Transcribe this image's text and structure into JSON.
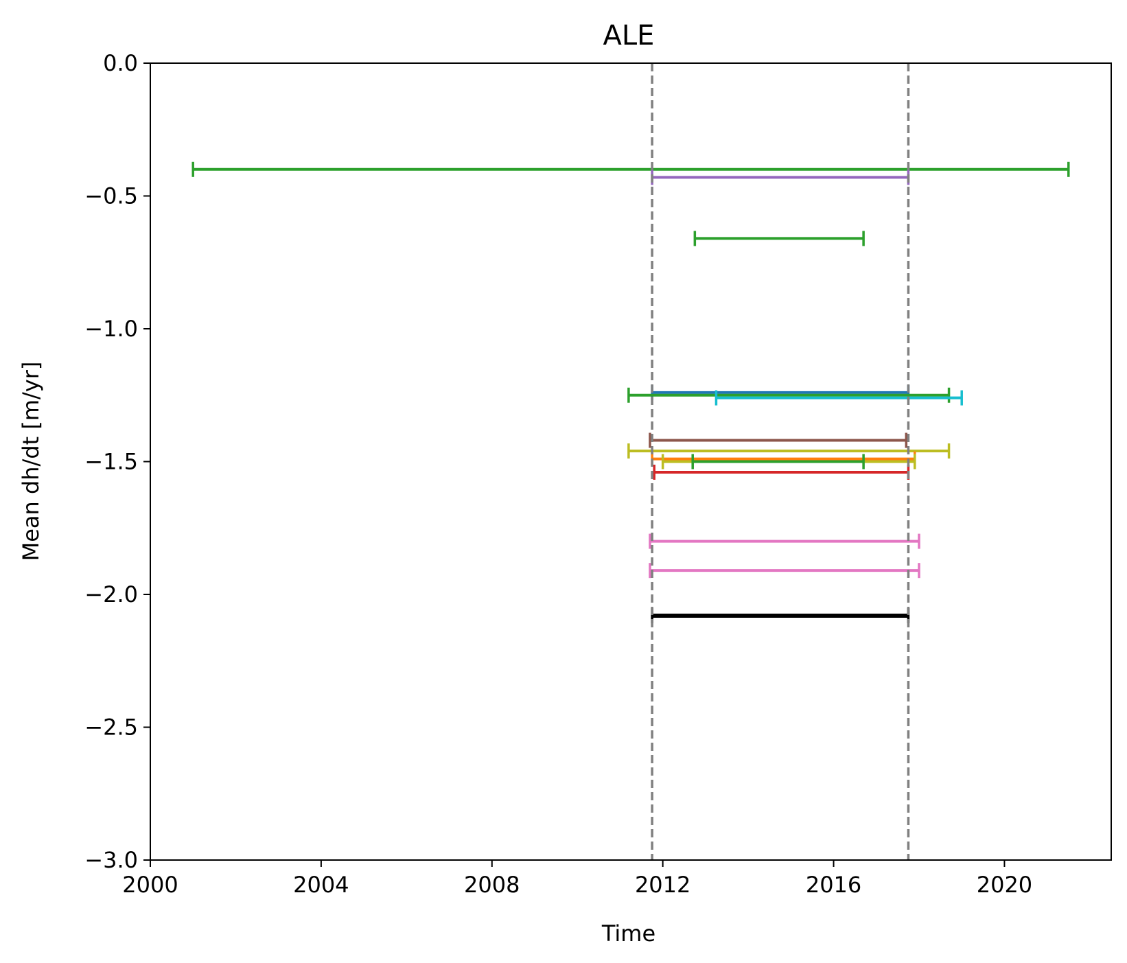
{
  "chart_data": {
    "type": "errorbar",
    "title": "ALE",
    "xlabel": "Time",
    "ylabel": "Mean dh/dt [m/yr]",
    "xlim": [
      2000,
      2022.5
    ],
    "ylim": [
      -3.0,
      0.0
    ],
    "x_ticks": [
      {
        "value": 2000,
        "label": "2000"
      },
      {
        "value": 2004,
        "label": "2004"
      },
      {
        "value": 2008,
        "label": "2008"
      },
      {
        "value": 2012,
        "label": "2012"
      },
      {
        "value": 2016,
        "label": "2016"
      },
      {
        "value": 2020,
        "label": "2020"
      }
    ],
    "y_ticks": [
      {
        "value": 0.0,
        "label": "0.0"
      },
      {
        "value": -0.5,
        "label": "−0.5"
      },
      {
        "value": -1.0,
        "label": "−1.0"
      },
      {
        "value": -1.5,
        "label": "−1.5"
      },
      {
        "value": -2.0,
        "label": "−2.0"
      },
      {
        "value": -2.5,
        "label": "−2.5"
      },
      {
        "value": -3.0,
        "label": "−3.0"
      }
    ],
    "grid": false,
    "reference_lines": [
      {
        "x": 2011.75,
        "color": "#808080",
        "style": "dashed"
      },
      {
        "x": 2017.75,
        "color": "#808080",
        "style": "dashed"
      }
    ],
    "segments": [
      {
        "start": 2001.0,
        "end": 2021.5,
        "value": -0.4,
        "color": "#2ca02c"
      },
      {
        "start": 2011.75,
        "end": 2017.75,
        "value": -0.43,
        "color": "#9467bd"
      },
      {
        "start": 2012.75,
        "end": 2016.7,
        "value": -0.66,
        "color": "#2ca02c"
      },
      {
        "start": 2011.75,
        "end": 2017.75,
        "value": -1.24,
        "color": "#1f77b4"
      },
      {
        "start": 2011.2,
        "end": 2018.7,
        "value": -1.25,
        "color": "#2ca02c"
      },
      {
        "start": 2013.25,
        "end": 2019.0,
        "value": -1.26,
        "color": "#17becf"
      },
      {
        "start": 2011.7,
        "end": 2017.7,
        "value": -1.42,
        "color": "#8c564b"
      },
      {
        "start": 2011.2,
        "end": 2018.7,
        "value": -1.46,
        "color": "#bcbd22"
      },
      {
        "start": 2011.75,
        "end": 2017.9,
        "value": -1.49,
        "color": "#ff7f0e"
      },
      {
        "start": 2012.0,
        "end": 2017.9,
        "value": -1.5,
        "color": "#bcbd22"
      },
      {
        "start": 2012.7,
        "end": 2016.7,
        "value": -1.5,
        "color": "#2ca02c"
      },
      {
        "start": 2011.8,
        "end": 2017.75,
        "value": -1.54,
        "color": "#d62728"
      },
      {
        "start": 2011.7,
        "end": 2018.0,
        "value": -1.8,
        "color": "#e377c2"
      },
      {
        "start": 2011.7,
        "end": 2018.0,
        "value": -1.91,
        "color": "#e377c2"
      },
      {
        "start": 2011.75,
        "end": 2017.75,
        "value": -2.08,
        "color": "#000000",
        "bold": true
      }
    ]
  }
}
